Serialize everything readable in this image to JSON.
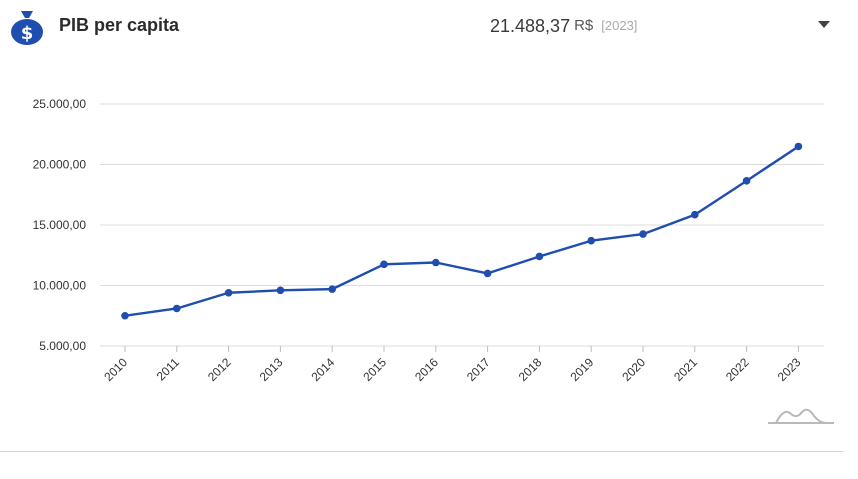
{
  "header": {
    "title": "PIB per capita",
    "value": "21.488,37",
    "unit": "R$",
    "year": "[2023]",
    "icon": "money-bag-icon",
    "icon_color": "#1f4db0"
  },
  "chart_data": {
    "type": "line",
    "title": "",
    "xlabel": "",
    "ylabel": "",
    "categories": [
      "2010",
      "2011",
      "2012",
      "2013",
      "2014",
      "2015",
      "2016",
      "2017",
      "2018",
      "2019",
      "2020",
      "2021",
      "2022",
      "2023"
    ],
    "values": [
      7500,
      8100,
      9400,
      9600,
      9700,
      11750,
      11900,
      11000,
      12400,
      13700,
      14250,
      15850,
      18650,
      21488.37
    ],
    "ylim": [
      5000,
      25000
    ],
    "yticks": [
      5000,
      10000,
      15000,
      20000,
      25000
    ],
    "ytick_labels": [
      "5.000,00",
      "10.000,00",
      "15.000,00",
      "20.000,00",
      "25.000,00"
    ],
    "grid": true,
    "line_color": "#1f4db0"
  }
}
